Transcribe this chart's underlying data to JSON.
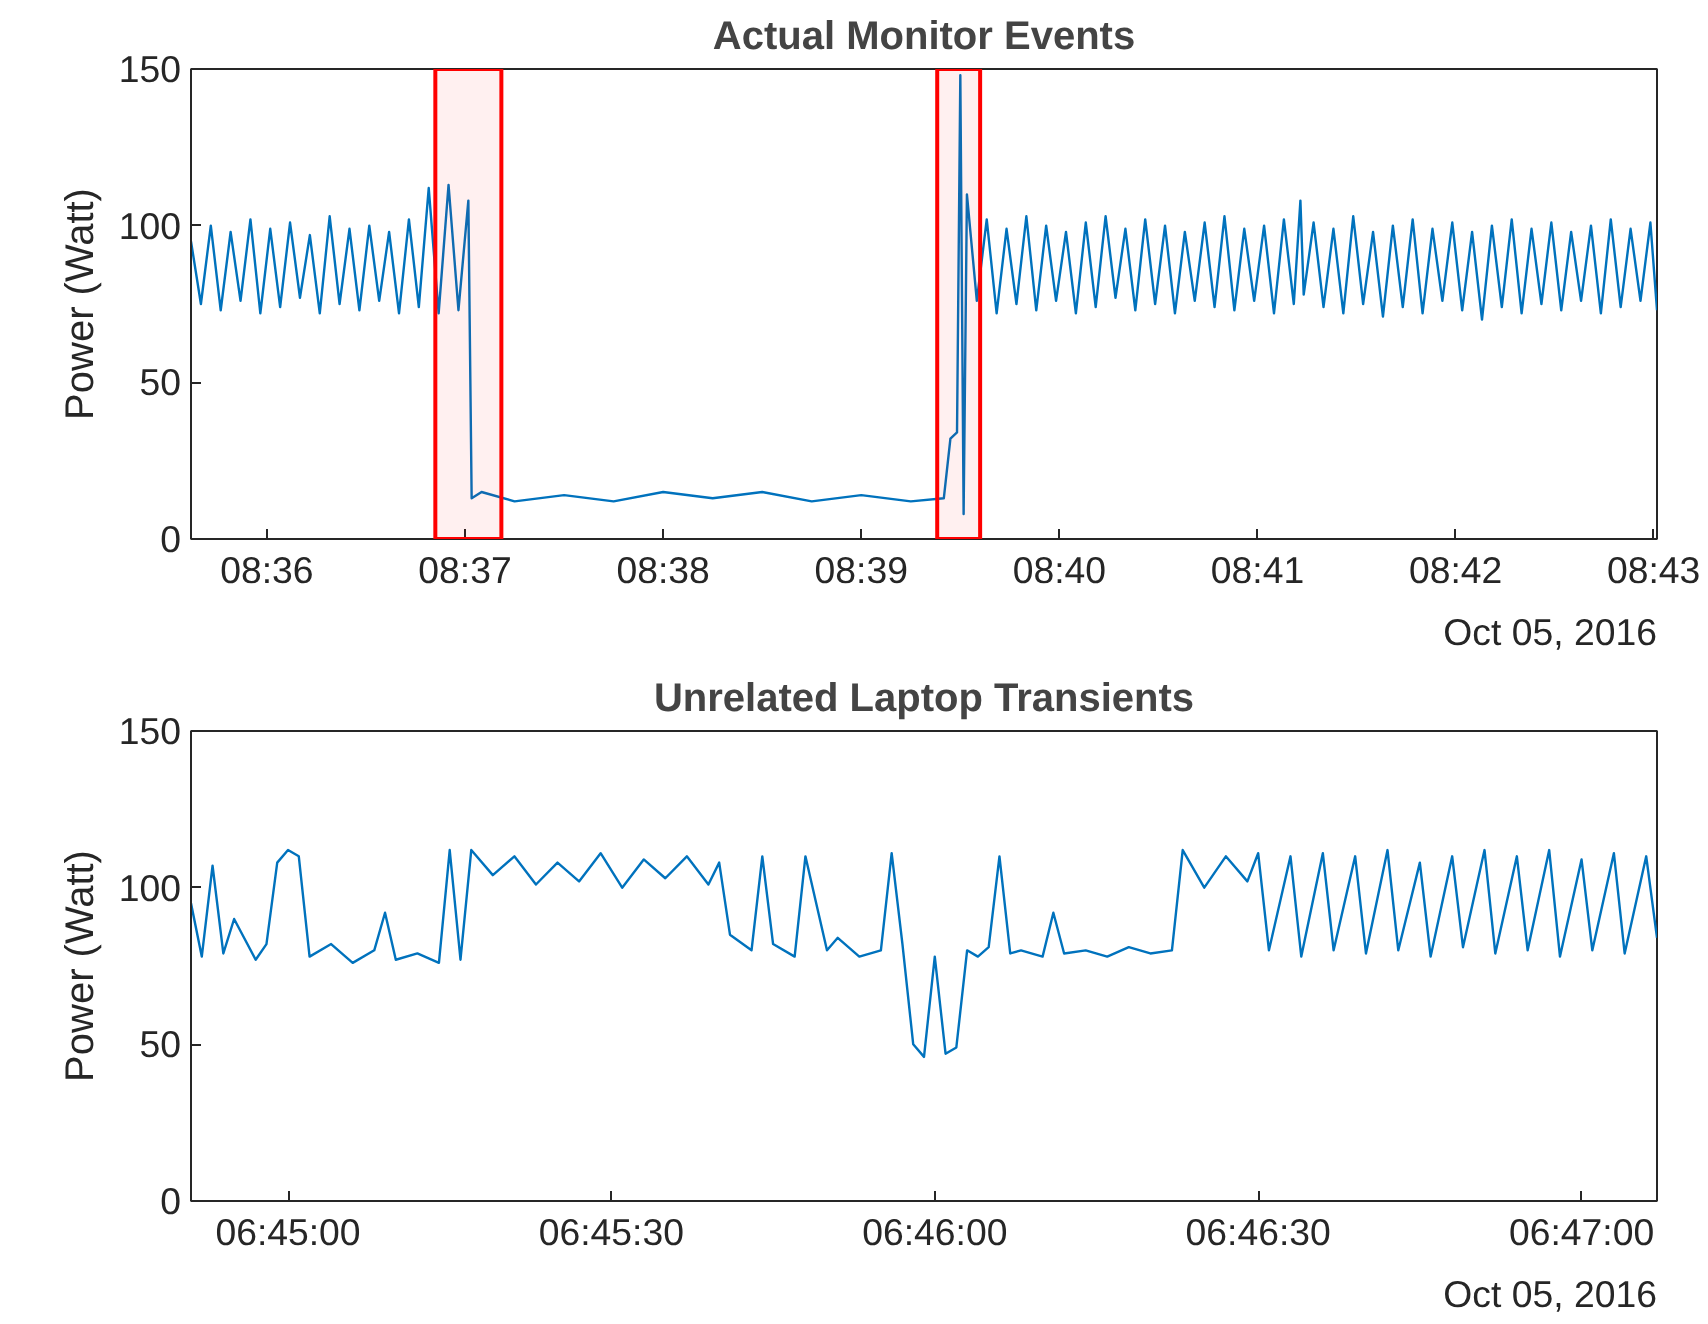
{
  "chart_data": [
    {
      "type": "line",
      "title": "Actual Monitor Events",
      "ylabel": "Power (Watt)",
      "xlim": [
        "2016-10-05T08:35:37",
        "2016-10-05T08:43:01"
      ],
      "ylim": [
        0,
        150
      ],
      "yticks": [
        0,
        50,
        100,
        150
      ],
      "xticks": [
        {
          "value": "2016-10-05T08:36",
          "label": "08:36"
        },
        {
          "value": "2016-10-05T08:37",
          "label": "08:37"
        },
        {
          "value": "2016-10-05T08:38",
          "label": "08:38"
        },
        {
          "value": "2016-10-05T08:39",
          "label": "08:39"
        },
        {
          "value": "2016-10-05T08:40",
          "label": "08:40"
        },
        {
          "value": "2016-10-05T08:41",
          "label": "08:41"
        },
        {
          "value": "2016-10-05T08:42",
          "label": "08:42"
        },
        {
          "value": "2016-10-05T08:43",
          "label": "08:43"
        }
      ],
      "annotations": [
        "Oct 05, 2016"
      ],
      "bands": [
        {
          "axis": "x",
          "from": "2016-10-05T08:36:51",
          "to": "2016-10-05T08:37:11",
          "color": "#ff0000"
        },
        {
          "axis": "x",
          "from": "2016-10-05T08:39:23",
          "to": "2016-10-05T08:39:36",
          "color": "#ff0000"
        }
      ],
      "series": [
        {
          "color": "#0072bd",
          "x": [
            "2016-10-05T08:35:37",
            "2016-10-05T08:35:40",
            "2016-10-05T08:35:43",
            "2016-10-05T08:35:46",
            "2016-10-05T08:35:49",
            "2016-10-05T08:35:52",
            "2016-10-05T08:35:55",
            "2016-10-05T08:35:58",
            "2016-10-05T08:36:01",
            "2016-10-05T08:36:04",
            "2016-10-05T08:36:07",
            "2016-10-05T08:36:10",
            "2016-10-05T08:36:13",
            "2016-10-05T08:36:16",
            "2016-10-05T08:36:19",
            "2016-10-05T08:36:22",
            "2016-10-05T08:36:25",
            "2016-10-05T08:36:28",
            "2016-10-05T08:36:31",
            "2016-10-05T08:36:34",
            "2016-10-05T08:36:37",
            "2016-10-05T08:36:40",
            "2016-10-05T08:36:43",
            "2016-10-05T08:36:46",
            "2016-10-05T08:36:49",
            "2016-10-05T08:36:52",
            "2016-10-05T08:36:55",
            "2016-10-05T08:36:58",
            "2016-10-05T08:37:01",
            "2016-10-05T08:37:02",
            "2016-10-05T08:37:05",
            "2016-10-05T08:37:15",
            "2016-10-05T08:37:30",
            "2016-10-05T08:37:45",
            "2016-10-05T08:38:00",
            "2016-10-05T08:38:15",
            "2016-10-05T08:38:30",
            "2016-10-05T08:38:45",
            "2016-10-05T08:39:00",
            "2016-10-05T08:39:15",
            "2016-10-05T08:39:25",
            "2016-10-05T08:39:27",
            "2016-10-05T08:39:29",
            "2016-10-05T08:39:30",
            "2016-10-05T08:39:31",
            "2016-10-05T08:39:32",
            "2016-10-05T08:39:35",
            "2016-10-05T08:39:38",
            "2016-10-05T08:39:41",
            "2016-10-05T08:39:44",
            "2016-10-05T08:39:47",
            "2016-10-05T08:39:50",
            "2016-10-05T08:39:53",
            "2016-10-05T08:39:56",
            "2016-10-05T08:39:59",
            "2016-10-05T08:40:02",
            "2016-10-05T08:40:05",
            "2016-10-05T08:40:08",
            "2016-10-05T08:40:11",
            "2016-10-05T08:40:14",
            "2016-10-05T08:40:17",
            "2016-10-05T08:40:20",
            "2016-10-05T08:40:23",
            "2016-10-05T08:40:26",
            "2016-10-05T08:40:29",
            "2016-10-05T08:40:32",
            "2016-10-05T08:40:35",
            "2016-10-05T08:40:38",
            "2016-10-05T08:40:41",
            "2016-10-05T08:40:44",
            "2016-10-05T08:40:47",
            "2016-10-05T08:40:50",
            "2016-10-05T08:40:53",
            "2016-10-05T08:40:56",
            "2016-10-05T08:40:59",
            "2016-10-05T08:41:02",
            "2016-10-05T08:41:05",
            "2016-10-05T08:41:08",
            "2016-10-05T08:41:11",
            "2016-10-05T08:41:13",
            "2016-10-05T08:41:14",
            "2016-10-05T08:41:17",
            "2016-10-05T08:41:20",
            "2016-10-05T08:41:23",
            "2016-10-05T08:41:26",
            "2016-10-05T08:41:29",
            "2016-10-05T08:41:32",
            "2016-10-05T08:41:35",
            "2016-10-05T08:41:38",
            "2016-10-05T08:41:41",
            "2016-10-05T08:41:44",
            "2016-10-05T08:41:47",
            "2016-10-05T08:41:50",
            "2016-10-05T08:41:53",
            "2016-10-05T08:41:56",
            "2016-10-05T08:41:59",
            "2016-10-05T08:42:02",
            "2016-10-05T08:42:05",
            "2016-10-05T08:42:08",
            "2016-10-05T08:42:11",
            "2016-10-05T08:42:14",
            "2016-10-05T08:42:17",
            "2016-10-05T08:42:20",
            "2016-10-05T08:42:23",
            "2016-10-05T08:42:26",
            "2016-10-05T08:42:29",
            "2016-10-05T08:42:32",
            "2016-10-05T08:42:35",
            "2016-10-05T08:42:38",
            "2016-10-05T08:42:41",
            "2016-10-05T08:42:44",
            "2016-10-05T08:42:47",
            "2016-10-05T08:42:50",
            "2016-10-05T08:42:53",
            "2016-10-05T08:42:56",
            "2016-10-05T08:42:59",
            "2016-10-05T08:43:01"
          ],
          "values": [
            95,
            75,
            100,
            73,
            98,
            76,
            102,
            72,
            99,
            74,
            101,
            77,
            97,
            72,
            103,
            75,
            99,
            73,
            100,
            76,
            98,
            72,
            102,
            74,
            112,
            72,
            113,
            73,
            108,
            13,
            15,
            12,
            14,
            12,
            15,
            13,
            15,
            12,
            14,
            12,
            13,
            32,
            34,
            148,
            8,
            110,
            76,
            102,
            72,
            99,
            75,
            103,
            73,
            100,
            76,
            98,
            72,
            101,
            74,
            103,
            77,
            99,
            73,
            102,
            75,
            100,
            72,
            98,
            76,
            101,
            74,
            103,
            73,
            99,
            76,
            100,
            72,
            102,
            75,
            108,
            78,
            101,
            74,
            99,
            72,
            103,
            75,
            98,
            71,
            100,
            74,
            102,
            72,
            99,
            76,
            101,
            73,
            98,
            70,
            100,
            74,
            102,
            72,
            99,
            75,
            101,
            73,
            98,
            76,
            100,
            72,
            102,
            74,
            99,
            76,
            101,
            73
          ]
        }
      ]
    },
    {
      "type": "line",
      "title": "Unrelated Laptop Transients",
      "ylabel": "Power (Watt)",
      "xlim": [
        "2016-10-05T06:44:51",
        "2016-10-05T06:47:07"
      ],
      "ylim": [
        0,
        150
      ],
      "yticks": [
        0,
        50,
        100,
        150
      ],
      "xticks": [
        {
          "value": "2016-10-05T06:45:00",
          "label": "06:45:00"
        },
        {
          "value": "2016-10-05T06:45:30",
          "label": "06:45:30"
        },
        {
          "value": "2016-10-05T06:46:00",
          "label": "06:46:00"
        },
        {
          "value": "2016-10-05T06:46:30",
          "label": "06:46:30"
        },
        {
          "value": "2016-10-05T06:47:00",
          "label": "06:47:00"
        }
      ],
      "annotations": [
        "Oct 05, 2016"
      ],
      "series": [
        {
          "color": "#0072bd",
          "x": [
            "2016-10-05T06:44:51",
            "2016-10-05T06:44:52",
            "2016-10-05T06:44:53",
            "2016-10-05T06:44:54",
            "2016-10-05T06:44:55",
            "2016-10-05T06:44:57",
            "2016-10-05T06:44:58",
            "2016-10-05T06:44:59",
            "2016-10-05T06:45:00",
            "2016-10-05T06:45:01",
            "2016-10-05T06:45:02",
            "2016-10-05T06:45:04",
            "2016-10-05T06:45:06",
            "2016-10-05T06:45:08",
            "2016-10-05T06:45:09",
            "2016-10-05T06:45:10",
            "2016-10-05T06:45:12",
            "2016-10-05T06:45:14",
            "2016-10-05T06:45:15",
            "2016-10-05T06:45:16",
            "2016-10-05T06:45:17",
            "2016-10-05T06:45:19",
            "2016-10-05T06:45:21",
            "2016-10-05T06:45:23",
            "2016-10-05T06:45:25",
            "2016-10-05T06:45:27",
            "2016-10-05T06:45:29",
            "2016-10-05T06:45:31",
            "2016-10-05T06:45:33",
            "2016-10-05T06:45:35",
            "2016-10-05T06:45:37",
            "2016-10-05T06:45:39",
            "2016-10-05T06:45:40",
            "2016-10-05T06:45:41",
            "2016-10-05T06:45:43",
            "2016-10-05T06:45:44",
            "2016-10-05T06:45:45",
            "2016-10-05T06:45:47",
            "2016-10-05T06:45:48",
            "2016-10-05T06:45:50",
            "2016-10-05T06:45:51",
            "2016-10-05T06:45:53",
            "2016-10-05T06:45:55",
            "2016-10-05T06:45:56",
            "2016-10-05T06:45:57",
            "2016-10-05T06:45:58",
            "2016-10-05T06:45:59",
            "2016-10-05T06:46:00",
            "2016-10-05T06:46:01",
            "2016-10-05T06:46:02",
            "2016-10-05T06:46:03",
            "2016-10-05T06:46:04",
            "2016-10-05T06:46:05",
            "2016-10-05T06:46:06",
            "2016-10-05T06:46:07",
            "2016-10-05T06:46:08",
            "2016-10-05T06:46:10",
            "2016-10-05T06:46:11",
            "2016-10-05T06:46:12",
            "2016-10-05T06:46:14",
            "2016-10-05T06:46:16",
            "2016-10-05T06:46:18",
            "2016-10-05T06:46:20",
            "2016-10-05T06:46:22",
            "2016-10-05T06:46:23",
            "2016-10-05T06:46:25",
            "2016-10-05T06:46:27",
            "2016-10-05T06:46:29",
            "2016-10-05T06:46:30",
            "2016-10-05T06:46:31",
            "2016-10-05T06:46:33",
            "2016-10-05T06:46:34",
            "2016-10-05T06:46:36",
            "2016-10-05T06:46:37",
            "2016-10-05T06:46:39",
            "2016-10-05T06:46:40",
            "2016-10-05T06:46:42",
            "2016-10-05T06:46:43",
            "2016-10-05T06:46:45",
            "2016-10-05T06:46:46",
            "2016-10-05T06:46:48",
            "2016-10-05T06:46:49",
            "2016-10-05T06:46:51",
            "2016-10-05T06:46:52",
            "2016-10-05T06:46:54",
            "2016-10-05T06:46:55",
            "2016-10-05T06:46:57",
            "2016-10-05T06:46:58",
            "2016-10-05T06:47:00",
            "2016-10-05T06:47:01",
            "2016-10-05T06:47:03",
            "2016-10-05T06:47:04",
            "2016-10-05T06:47:06",
            "2016-10-05T06:47:07"
          ],
          "values": [
            95,
            78,
            107,
            79,
            90,
            77,
            82,
            108,
            112,
            110,
            78,
            82,
            76,
            80,
            92,
            77,
            79,
            76,
            112,
            77,
            112,
            104,
            110,
            101,
            108,
            102,
            111,
            100,
            109,
            103,
            110,
            101,
            108,
            85,
            80,
            110,
            82,
            78,
            110,
            80,
            84,
            78,
            80,
            111,
            82,
            50,
            46,
            78,
            47,
            49,
            80,
            78,
            81,
            110,
            79,
            80,
            78,
            92,
            79,
            80,
            78,
            81,
            79,
            80,
            112,
            100,
            110,
            102,
            111,
            80,
            110,
            78,
            111,
            80,
            110,
            79,
            112,
            80,
            108,
            78,
            110,
            81,
            112,
            79,
            110,
            80,
            112,
            78,
            109,
            80,
            111,
            79,
            110,
            84
          ]
        }
      ]
    }
  ]
}
